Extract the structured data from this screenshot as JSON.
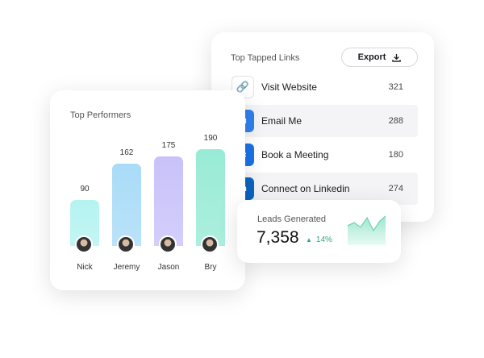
{
  "links_card": {
    "title": "Top Tapped Links",
    "export_label": "Export",
    "rows": [
      {
        "label": "Visit Website",
        "count": "321",
        "icon": "link-icon",
        "color": "#222222"
      },
      {
        "label": "Email Me",
        "count": "288",
        "icon": "mail-icon",
        "color": "#2f80ed"
      },
      {
        "label": "Book a Meeting",
        "count": "180",
        "icon": "calendar-icon",
        "color": "#1a73e8"
      },
      {
        "label": "Connect on Linkedin",
        "count": "274",
        "icon": "linkedin-icon",
        "color": "#0a66c2"
      }
    ]
  },
  "performers_card": {
    "title": "Top Performers"
  },
  "chart_data": {
    "type": "bar",
    "title": "Top Performers",
    "categories": [
      "Nick",
      "Jeremy",
      "Jason",
      "Bry"
    ],
    "values": [
      90,
      162,
      175,
      190
    ],
    "colors": [
      "#b4f3f1",
      "#a9dbf8",
      "#c9c2fa",
      "#98ebd6"
    ]
  },
  "leads_card": {
    "title": "Leads Generated",
    "value": "7,358",
    "change": "14%",
    "trend": "up",
    "accent": "#3aa57a"
  }
}
